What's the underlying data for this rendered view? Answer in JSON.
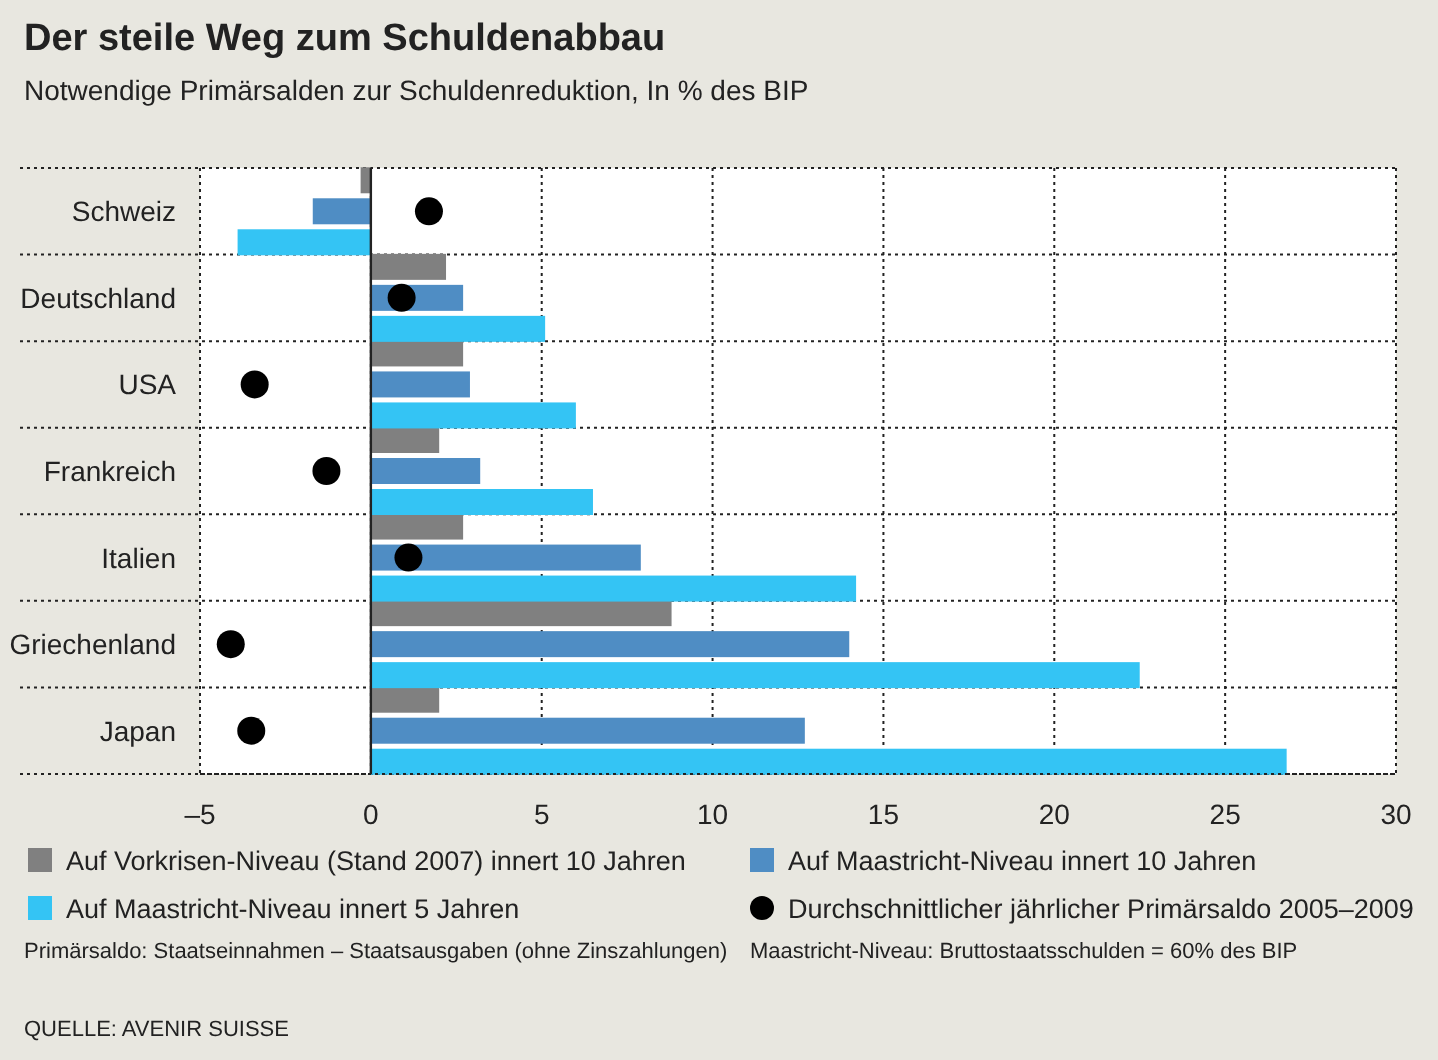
{
  "chart_data": {
    "type": "bar",
    "orientation": "horizontal",
    "title": "Der steile Weg zum Schuldenabbau",
    "subtitle": "Notwendige Primärsalden zur Schuldenreduktion, In % des BIP",
    "categories": [
      "Schweiz",
      "Deutschland",
      "USA",
      "Frankreich",
      "Italien",
      "Griechenland",
      "Japan"
    ],
    "series": [
      {
        "name": "Auf Vorkrisen-Niveau (Stand 2007) innert 10 Jahren",
        "color": "#808080",
        "values": [
          -0.3,
          2.2,
          2.7,
          2.0,
          2.7,
          8.8,
          2.0
        ]
      },
      {
        "name": "Auf Maastricht-Niveau innert 10 Jahren",
        "color": "#4f8dc4",
        "values": [
          -1.7,
          2.7,
          2.9,
          3.2,
          7.9,
          14.0,
          12.7
        ]
      },
      {
        "name": "Auf Maastricht-Niveau innert 5 Jahren",
        "color": "#34c4f4",
        "values": [
          -3.9,
          5.1,
          6.0,
          6.5,
          14.2,
          22.5,
          26.8
        ]
      },
      {
        "name": "Durchschnittlicher jährlicher Primärsaldo 2005–2009",
        "type": "scatter",
        "color": "#000000",
        "marker": "circle",
        "x": [
          "Schweiz",
          "Deutschland",
          "USA",
          "Frankreich",
          "Italien",
          "Griechenland",
          "Japan"
        ],
        "values": [
          1.7,
          0.9,
          -3.4,
          -1.3,
          1.1,
          -4.1,
          -3.5
        ]
      }
    ],
    "xlim": [
      -5,
      30
    ],
    "xticks": [
      {
        "value": -5,
        "label": "–5"
      },
      0,
      5,
      10,
      15,
      20,
      25,
      30
    ],
    "grid": "x",
    "legend": "bottom",
    "annotations": [
      "Primärsaldo: Staatseinnahmen – Staatsausgaben (ohne Zinszahlungen)",
      "Maastricht-Niveau: Bruttostaatsschulden = 60% des BIP",
      "QUELLE: AVENIR SUISSE"
    ]
  }
}
